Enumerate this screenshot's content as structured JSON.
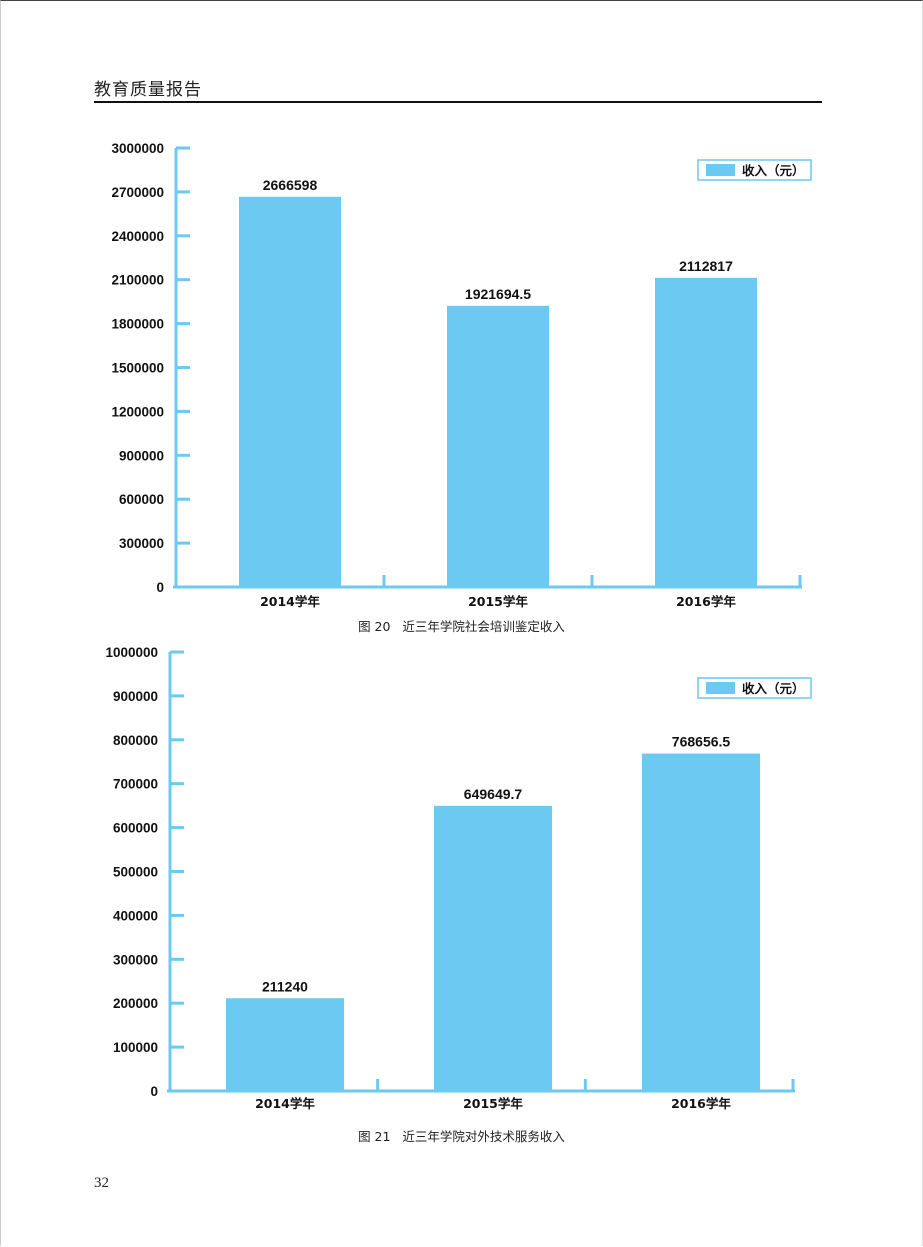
{
  "header": {
    "title": "教育质量报告"
  },
  "page_number": "32",
  "colors": {
    "bar": "#6cc9f1",
    "axis": "#6cc9f1",
    "text": "#111111"
  },
  "figures": [
    {
      "caption_no": "图 20",
      "caption_text": "近三年学院社会培训鉴定收入"
    },
    {
      "caption_no": "图 21",
      "caption_text": "近三年学院对外技术服务收入"
    }
  ],
  "chart_data": [
    {
      "type": "bar",
      "categories": [
        "2014学年",
        "2015学年",
        "2016学年"
      ],
      "series": [
        {
          "name": "收入（元）",
          "values": [
            2666598,
            1921694.5,
            2112817
          ]
        }
      ],
      "value_labels": [
        "2666598",
        "1921694.5",
        "2112817"
      ],
      "yticks": [
        "0",
        "300000",
        "600000",
        "900000",
        "1200000",
        "1500000",
        "1800000",
        "2100000",
        "2400000",
        "2700000",
        "3000000"
      ],
      "ylim": [
        0,
        3000000
      ],
      "legend_placement": "top-right",
      "grid": false
    },
    {
      "type": "bar",
      "categories": [
        "2014学年",
        "2015学年",
        "2016学年"
      ],
      "series": [
        {
          "name": "收入（元）",
          "values": [
            211240,
            649649.7,
            768656.5
          ]
        }
      ],
      "value_labels": [
        "211240",
        "649649.7",
        "768656.5"
      ],
      "yticks": [
        "0",
        "100000",
        "200000",
        "300000",
        "400000",
        "500000",
        "600000",
        "700000",
        "800000",
        "900000",
        "1000000"
      ],
      "ylim": [
        0,
        1000000
      ],
      "legend_placement": "top-right",
      "grid": false
    }
  ]
}
